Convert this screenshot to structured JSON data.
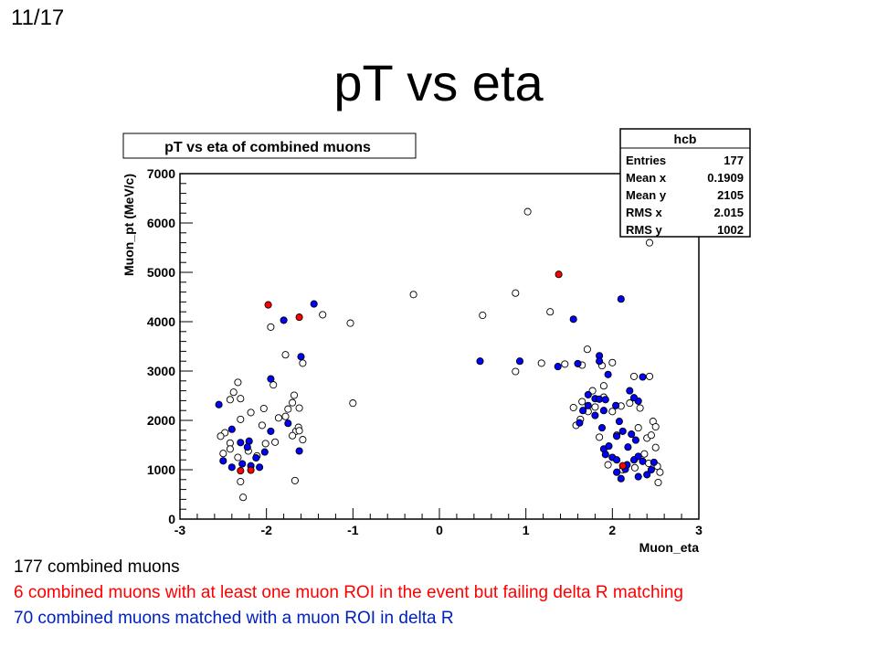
{
  "slide": {
    "number": "11/17",
    "title": "pT vs eta"
  },
  "chart_data": {
    "type": "scatter",
    "title": "pT vs eta of combined muons",
    "xlabel": "Muon_eta",
    "ylabel": "Muon_pt (MeV/c)",
    "xlim": [
      -3,
      3
    ],
    "ylim": [
      0,
      7000
    ],
    "x_ticks": [
      -3,
      -2,
      -1,
      0,
      1,
      2,
      3
    ],
    "y_ticks": [
      0,
      1000,
      2000,
      3000,
      4000,
      5000,
      6000,
      7000
    ],
    "x_tick_labels": [
      "-3",
      "-2",
      "-1",
      "0",
      "1",
      "2",
      "3"
    ],
    "y_tick_labels": [
      "0",
      "1000",
      "2000",
      "3000",
      "4000",
      "5000",
      "6000",
      "7000"
    ],
    "colors": {
      "all": "#ffffff",
      "failing": "#ff0000",
      "matched": "#0000ff"
    },
    "stats_box": {
      "name": "hcb",
      "rows": [
        {
          "label": "Entries",
          "value": "177"
        },
        {
          "label": "Mean x",
          "value": "0.1909"
        },
        {
          "label": "Mean y",
          "value": "2105"
        },
        {
          "label": "RMS x",
          "value": "2.015"
        },
        {
          "label": "RMS y",
          "value": "1002"
        }
      ]
    },
    "series": [
      {
        "category": "all",
        "points": [
          [
            1.02,
            6230
          ],
          [
            2.43,
            5600
          ],
          [
            -0.3,
            4550
          ],
          [
            0.88,
            4580
          ],
          [
            1.28,
            4200
          ],
          [
            0.5,
            4130
          ],
          [
            -1.35,
            4140
          ],
          [
            -1.03,
            3970
          ],
          [
            -1.95,
            3890
          ],
          [
            1.71,
            3440
          ],
          [
            -1.78,
            3330
          ],
          [
            1.18,
            3160
          ],
          [
            -1.58,
            3160
          ],
          [
            0.88,
            2990
          ],
          [
            1.45,
            3140
          ],
          [
            1.65,
            3120
          ],
          [
            1.88,
            3110
          ],
          [
            2.25,
            2890
          ],
          [
            2.43,
            2890
          ],
          [
            -1.0,
            2350
          ],
          [
            -1.92,
            2720
          ],
          [
            -2.33,
            2770
          ],
          [
            -2.38,
            2570
          ],
          [
            -2.42,
            2420
          ],
          [
            -2.3,
            2440
          ],
          [
            -2.03,
            2240
          ],
          [
            -2.18,
            2160
          ],
          [
            -1.7,
            2360
          ],
          [
            -1.68,
            2510
          ],
          [
            -1.78,
            2080
          ],
          [
            -1.62,
            2250
          ],
          [
            -2.48,
            1750
          ],
          [
            -2.53,
            1680
          ],
          [
            -2.42,
            1540
          ],
          [
            -2.5,
            1330
          ],
          [
            -2.42,
            1420
          ],
          [
            -2.33,
            1250
          ],
          [
            -2.21,
            1380
          ],
          [
            -2.11,
            1280
          ],
          [
            -2.01,
            1530
          ],
          [
            -1.9,
            1560
          ],
          [
            -1.86,
            2050
          ],
          [
            -1.75,
            2230
          ],
          [
            -1.66,
            1780
          ],
          [
            -1.63,
            1860
          ],
          [
            -1.7,
            1690
          ],
          [
            -1.58,
            1610
          ],
          [
            -1.67,
            780
          ],
          [
            -2.3,
            760
          ],
          [
            -2.27,
            440
          ],
          [
            -2.05,
            1900
          ],
          [
            -2.3,
            2020
          ],
          [
            -1.62,
            1790
          ],
          [
            1.55,
            2260
          ],
          [
            1.65,
            2380
          ],
          [
            1.8,
            2270
          ],
          [
            1.9,
            2470
          ],
          [
            2.0,
            2180
          ],
          [
            2.1,
            2290
          ],
          [
            2.2,
            2350
          ],
          [
            2.3,
            1850
          ],
          [
            2.32,
            2250
          ],
          [
            2.4,
            1640
          ],
          [
            2.45,
            1700
          ],
          [
            2.5,
            1450
          ],
          [
            2.52,
            1070
          ],
          [
            2.55,
            950
          ],
          [
            2.42,
            1130
          ],
          [
            2.37,
            1320
          ],
          [
            2.47,
            1980
          ],
          [
            2.5,
            1870
          ],
          [
            2.53,
            740
          ],
          [
            2.26,
            1040
          ],
          [
            2.12,
            1000
          ],
          [
            1.95,
            1100
          ],
          [
            1.85,
            1660
          ],
          [
            1.72,
            2180
          ],
          [
            1.63,
            2020
          ],
          [
            1.58,
            1900
          ],
          [
            1.9,
            2700
          ],
          [
            2.0,
            3170
          ],
          [
            2.05,
            1700
          ],
          [
            1.77,
            2600
          ]
        ]
      },
      {
        "category": "matched",
        "points": [
          [
            -1.45,
            4360
          ],
          [
            -1.8,
            4030
          ],
          [
            -1.6,
            3290
          ],
          [
            -1.95,
            2840
          ],
          [
            -2.55,
            2320
          ],
          [
            -2.4,
            1820
          ],
          [
            -2.3,
            1550
          ],
          [
            -2.2,
            1580
          ],
          [
            -2.02,
            1360
          ],
          [
            -2.28,
            1120
          ],
          [
            -2.18,
            1080
          ],
          [
            -2.08,
            1050
          ],
          [
            -1.95,
            1780
          ],
          [
            -1.62,
            1380
          ],
          [
            -1.75,
            1940
          ],
          [
            -2.4,
            1050
          ],
          [
            -2.5,
            1180
          ],
          [
            -2.12,
            1240
          ],
          [
            -2.22,
            1460
          ],
          [
            2.1,
            4460
          ],
          [
            1.55,
            4050
          ],
          [
            0.47,
            3200
          ],
          [
            0.93,
            3200
          ],
          [
            1.37,
            3090
          ],
          [
            1.6,
            3150
          ],
          [
            1.85,
            3310
          ],
          [
            1.85,
            3200
          ],
          [
            1.95,
            2930
          ],
          [
            2.35,
            2880
          ],
          [
            2.2,
            2600
          ],
          [
            1.72,
            2520
          ],
          [
            1.8,
            2440
          ],
          [
            1.85,
            2430
          ],
          [
            1.92,
            2420
          ],
          [
            2.3,
            2390
          ],
          [
            2.25,
            2460
          ],
          [
            1.72,
            2300
          ],
          [
            1.8,
            2100
          ],
          [
            1.9,
            2200
          ],
          [
            1.66,
            2200
          ],
          [
            2.08,
            1980
          ],
          [
            2.12,
            1780
          ],
          [
            2.05,
            1680
          ],
          [
            2.22,
            1720
          ],
          [
            2.27,
            1600
          ],
          [
            2.18,
            1460
          ],
          [
            1.9,
            1420
          ],
          [
            1.92,
            1310
          ],
          [
            2.0,
            1250
          ],
          [
            2.05,
            1200
          ],
          [
            2.25,
            1200
          ],
          [
            2.35,
            1170
          ],
          [
            2.48,
            1150
          ],
          [
            2.15,
            1010
          ],
          [
            2.05,
            950
          ],
          [
            2.4,
            900
          ],
          [
            2.1,
            820
          ],
          [
            2.3,
            860
          ],
          [
            1.62,
            1950
          ],
          [
            2.04,
            2300
          ],
          [
            1.96,
            1480
          ],
          [
            2.3,
            1270
          ],
          [
            2.17,
            1100
          ],
          [
            2.45,
            1000
          ],
          [
            1.88,
            1850
          ]
        ]
      },
      {
        "category": "failing",
        "points": [
          [
            -1.98,
            4340
          ],
          [
            -1.62,
            4090
          ],
          [
            1.38,
            4960
          ],
          [
            -2.3,
            980
          ],
          [
            -2.18,
            990
          ],
          [
            2.12,
            1080
          ]
        ]
      }
    ]
  },
  "captions": [
    "177 combined muons",
    "6 combined muons with at least one muon ROI in the event but failing delta R matching",
    "70 combined muons matched with a muon ROI in delta R"
  ]
}
